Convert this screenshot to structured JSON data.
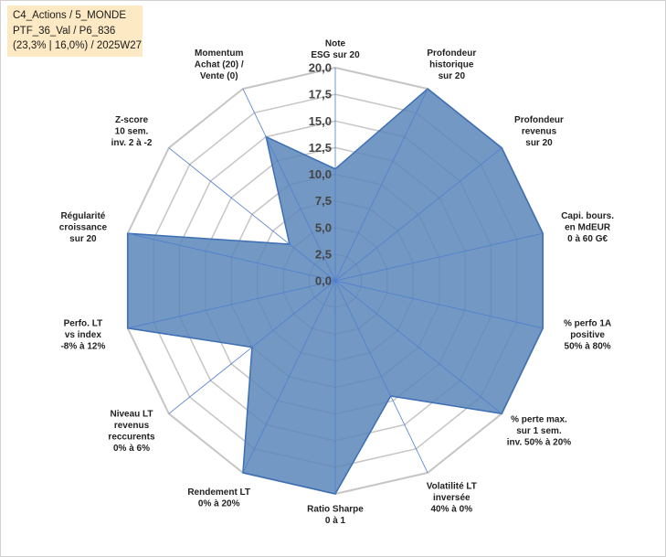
{
  "info_box": {
    "line1": "C4_Actions / 5_MONDE",
    "line2": "PTF_36_Val / P6_836",
    "line3": "(23,3% | 16,0%) / 2025W27"
  },
  "colors": {
    "fill": "#5b86b8",
    "stroke": "#3d6fb5",
    "grid": "#c6c6c6",
    "spoke": "#4f7fd0",
    "info_bg": "#fde9c4"
  },
  "chart_data": {
    "type": "radar",
    "title": "",
    "rmin": 0,
    "rmax": 20,
    "grid_levels": [
      0,
      2.5,
      5,
      7.5,
      10,
      12.5,
      15,
      17.5,
      20
    ],
    "tick_labels": [
      "0,0",
      "2,5",
      "5,0",
      "7,5",
      "10,0",
      "12,5",
      "15,0",
      "17,5",
      "20,0"
    ],
    "axes": [
      [
        "Note",
        "ESG sur 20"
      ],
      [
        "Profondeur",
        "historique",
        "sur 20"
      ],
      [
        "Profondeur",
        "revenus",
        "sur 20"
      ],
      [
        "Capi. bours.",
        "en MdEUR",
        "0 à 60 G€"
      ],
      [
        "% perfo 1A",
        "positive",
        "50% à 80%"
      ],
      [
        "% perte max.",
        "sur 1 sem.",
        "inv. 50% à 20%"
      ],
      [
        "Volatilité LT",
        "inversée",
        "40% à 0%"
      ],
      [
        "Ratio Sharpe",
        "0 à 1"
      ],
      [
        "Rendement LT",
        "0% à 20%"
      ],
      [
        "Niveau LT",
        "revenus",
        "reccurents",
        "0% à 6%"
      ],
      [
        "Perfo. LT",
        "vs index",
        "-8% à 12%"
      ],
      [
        "Régularité",
        "croissance",
        "sur 20"
      ],
      [
        "Z-score",
        "10 sem.",
        "inv. 2 à -2"
      ],
      [
        "Momentum",
        "Achat (20) /",
        "Vente (0)"
      ]
    ],
    "series": [
      {
        "values": [
          10.5,
          20,
          20,
          20,
          20,
          20,
          12,
          20,
          20,
          10,
          20,
          20,
          5.5,
          15
        ]
      }
    ]
  }
}
